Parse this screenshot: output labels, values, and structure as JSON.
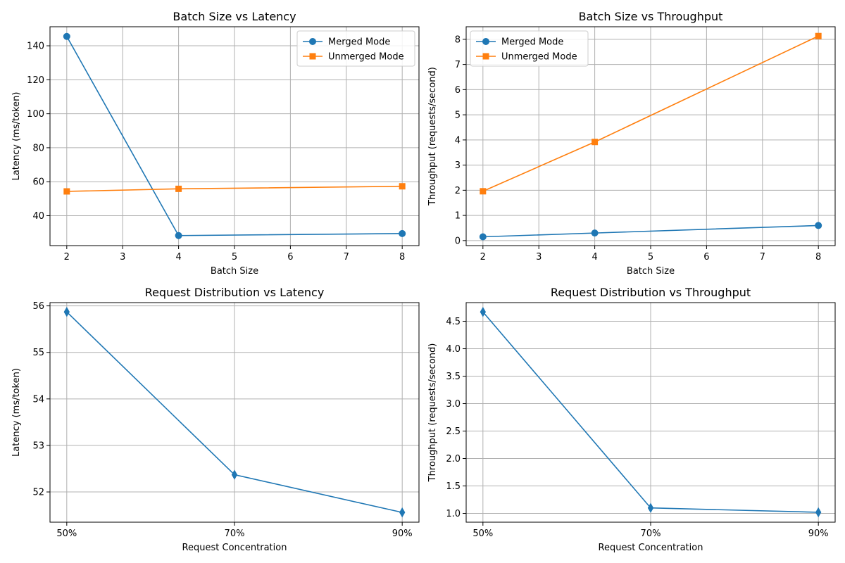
{
  "chart_data": [
    {
      "type": "line",
      "title": "Batch Size vs Latency",
      "xlabel": "Batch Size",
      "ylabel": "Latency (ms/token)",
      "x": [
        2,
        4,
        8
      ],
      "xlim": [
        1.7,
        8.3
      ],
      "ylim": [
        22.4,
        151.2
      ],
      "xticks": [
        2,
        3,
        4,
        5,
        6,
        7,
        8
      ],
      "yticks": [
        40,
        60,
        80,
        100,
        120,
        140
      ],
      "grid": true,
      "legend": "top-right",
      "series": [
        {
          "name": "Merged Mode",
          "values": [
            145.5,
            28.3,
            29.5
          ],
          "color": "#1f77b4",
          "marker": "circle"
        },
        {
          "name": "Unmerged Mode",
          "values": [
            54.3,
            55.8,
            57.3
          ],
          "color": "#ff7f0e",
          "marker": "square"
        }
      ]
    },
    {
      "type": "line",
      "title": "Batch Size vs Throughput",
      "xlabel": "Batch Size",
      "ylabel": "Throughput (requests/second)",
      "x": [
        2,
        4,
        8
      ],
      "xlim": [
        1.7,
        8.3
      ],
      "ylim": [
        -0.2,
        8.5
      ],
      "xticks": [
        2,
        3,
        4,
        5,
        6,
        7,
        8
      ],
      "yticks": [
        0,
        1,
        2,
        3,
        4,
        5,
        6,
        7,
        8
      ],
      "grid": true,
      "legend": "top-left",
      "series": [
        {
          "name": "Merged Mode",
          "values": [
            0.15,
            0.3,
            0.6
          ],
          "color": "#1f77b4",
          "marker": "circle"
        },
        {
          "name": "Unmerged Mode",
          "values": [
            1.96,
            3.92,
            8.13
          ],
          "color": "#ff7f0e",
          "marker": "square"
        }
      ]
    },
    {
      "type": "line",
      "title": "Request Distribution vs Latency",
      "xlabel": "Request Concentration",
      "ylabel": "Latency (ms/token)",
      "categories": [
        "50%",
        "70%",
        "90%"
      ],
      "xlim": [
        -0.1,
        2.1
      ],
      "ylim": [
        51.35,
        56.07
      ],
      "yticks": [
        52,
        53,
        54,
        55,
        56
      ],
      "grid": true,
      "series": [
        {
          "values": [
            55.87,
            52.37,
            51.56
          ],
          "color": "#1f77b4",
          "marker": "thin_diamond"
        }
      ]
    },
    {
      "type": "line",
      "title": "Request Distribution vs Throughput",
      "xlabel": "Request Concentration",
      "ylabel": "Throughput (requests/second)",
      "categories": [
        "50%",
        "70%",
        "90%"
      ],
      "xlim": [
        -0.1,
        2.1
      ],
      "ylim": [
        0.84,
        4.84
      ],
      "yticks": [
        1.0,
        1.5,
        2.0,
        2.5,
        3.0,
        3.5,
        4.0,
        4.5
      ],
      "ytick_labels": [
        "1.0",
        "1.5",
        "2.0",
        "2.5",
        "3.0",
        "3.5",
        "4.0",
        "4.5"
      ],
      "grid": true,
      "series": [
        {
          "values": [
            4.67,
            1.1,
            1.02
          ],
          "color": "#1f77b4",
          "marker": "thin_diamond"
        }
      ]
    }
  ]
}
